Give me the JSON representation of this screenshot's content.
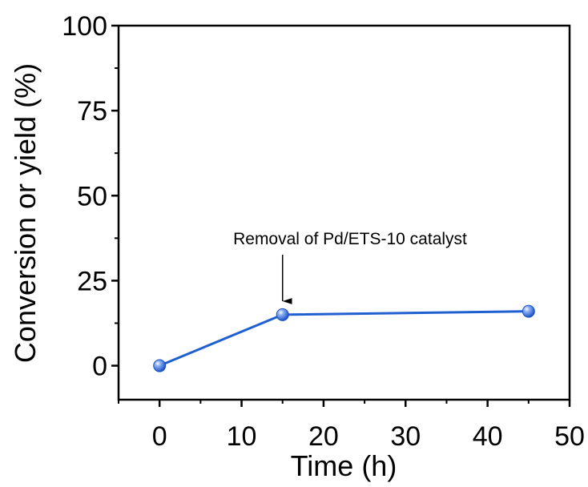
{
  "chart_data": {
    "type": "line",
    "title": "",
    "xlabel": "Time (h)",
    "ylabel": "Conversion or yield (%)",
    "xlim": [
      -5,
      50
    ],
    "ylim": [
      -10,
      100
    ],
    "x_ticks": [
      0,
      10,
      20,
      30,
      40,
      50
    ],
    "y_ticks": [
      0,
      25,
      50,
      75,
      100
    ],
    "x_tick_labels": [
      "0",
      "10",
      "20",
      "30",
      "40",
      "50"
    ],
    "y_tick_labels": [
      "0",
      "25",
      "50",
      "75",
      "100"
    ],
    "series": [
      {
        "x": [
          0,
          15,
          45
        ],
        "y": [
          0,
          15,
          16
        ],
        "color": "#1f5fd0"
      }
    ],
    "annotation": {
      "text": "Removal of Pd/ETS-10 catalyst",
      "x": 15
    },
    "grid": false
  }
}
